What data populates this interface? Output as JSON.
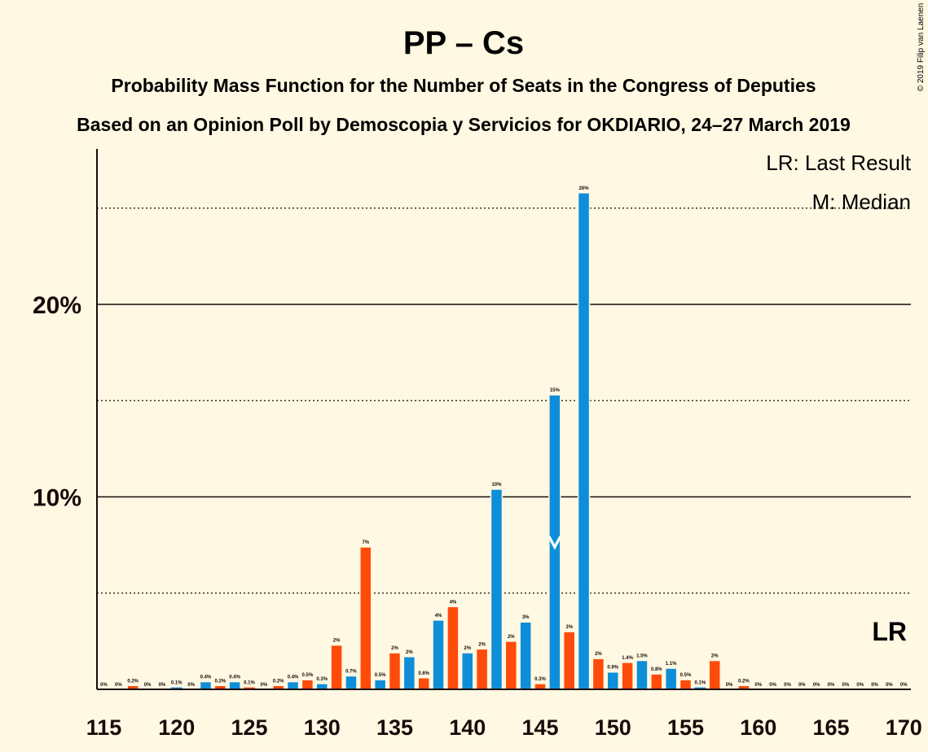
{
  "title": "PP – Cs",
  "subtitle1": "Probability Mass Function for the Number of Seats in the Congress of Deputies",
  "subtitle2": "Based on an Opinion Poll by Demoscopia y Servicios for OKDIARIO, 24–27 March 2019",
  "copyright": "© 2019 Filip van Laenen",
  "legend": {
    "lr": "LR: Last Result",
    "m": "M: Median"
  },
  "lr_label": "LR",
  "median_marker": "M",
  "colors": {
    "blue": "#0E8ED8",
    "orange": "#FF4B0A",
    "background": "#FFF8E2",
    "text": "#1a0a0a"
  },
  "chart_data": {
    "type": "bar",
    "x_range": [
      115,
      170
    ],
    "ylim": [
      0,
      28
    ],
    "yticks": [
      10,
      20
    ],
    "ytick_labels": [
      "10%",
      "20%"
    ],
    "dotted_gridlines": [
      5,
      15,
      25
    ],
    "solid_gridlines": [
      10,
      20
    ],
    "xticks": [
      115,
      120,
      125,
      130,
      135,
      140,
      145,
      150,
      155,
      160,
      165,
      170
    ],
    "median": 146,
    "bars": [
      {
        "x": 115,
        "value": 0,
        "label": "0%"
      },
      {
        "x": 116,
        "value": 0,
        "label": "0%"
      },
      {
        "x": 117,
        "value": 0.2,
        "label": "0.2%"
      },
      {
        "x": 118,
        "value": 0,
        "label": "0%"
      },
      {
        "x": 119,
        "value": 0,
        "label": "0%"
      },
      {
        "x": 120,
        "value": 0.1,
        "label": "0.1%"
      },
      {
        "x": 121,
        "value": 0,
        "label": "0%"
      },
      {
        "x": 122,
        "value": 0.4,
        "label": "0.4%"
      },
      {
        "x": 123,
        "value": 0.2,
        "label": "0.2%"
      },
      {
        "x": 124,
        "value": 0.4,
        "label": "0.4%"
      },
      {
        "x": 125,
        "value": 0.1,
        "label": "0.1%"
      },
      {
        "x": 126,
        "value": 0,
        "label": "0%"
      },
      {
        "x": 127,
        "value": 0.2,
        "label": "0.2%"
      },
      {
        "x": 128,
        "value": 0.4,
        "label": "0.4%"
      },
      {
        "x": 129,
        "value": 0.5,
        "label": "0.5%"
      },
      {
        "x": 130,
        "value": 0.3,
        "label": "0.3%"
      },
      {
        "x": 131,
        "value": 2.3,
        "label": "2%"
      },
      {
        "x": 132,
        "value": 0.7,
        "label": "0.7%"
      },
      {
        "x": 133,
        "value": 7.4,
        "label": "7%"
      },
      {
        "x": 134,
        "value": 0.5,
        "label": "0.5%"
      },
      {
        "x": 135,
        "value": 1.9,
        "label": "2%"
      },
      {
        "x": 136,
        "value": 1.7,
        "label": "2%"
      },
      {
        "x": 137,
        "value": 0.6,
        "label": "0.6%"
      },
      {
        "x": 138,
        "value": 3.6,
        "label": "4%"
      },
      {
        "x": 139,
        "value": 4.3,
        "label": "4%"
      },
      {
        "x": 140,
        "value": 1.9,
        "label": "2%"
      },
      {
        "x": 141,
        "value": 2.1,
        "label": "2%"
      },
      {
        "x": 142,
        "value": 10.4,
        "label": "10%"
      },
      {
        "x": 143,
        "value": 2.5,
        "label": "2%"
      },
      {
        "x": 144,
        "value": 3.5,
        "label": "3%"
      },
      {
        "x": 145,
        "value": 0.3,
        "label": "0.3%"
      },
      {
        "x": 146,
        "value": 15.3,
        "label": "15%"
      },
      {
        "x": 147,
        "value": 3.0,
        "label": "3%"
      },
      {
        "x": 148,
        "value": 25.8,
        "label": "26%"
      },
      {
        "x": 149,
        "value": 1.6,
        "label": "2%"
      },
      {
        "x": 150,
        "value": 0.9,
        "label": "0.9%"
      },
      {
        "x": 151,
        "value": 1.4,
        "label": "1.4%"
      },
      {
        "x": 152,
        "value": 1.5,
        "label": "1.5%"
      },
      {
        "x": 153,
        "value": 0.8,
        "label": "0.8%"
      },
      {
        "x": 154,
        "value": 1.1,
        "label": "1.1%"
      },
      {
        "x": 155,
        "value": 0.5,
        "label": "0.5%"
      },
      {
        "x": 156,
        "value": 0.1,
        "label": "0.1%"
      },
      {
        "x": 157,
        "value": 1.5,
        "label": "2%"
      },
      {
        "x": 158,
        "value": 0,
        "label": "0%"
      },
      {
        "x": 159,
        "value": 0.2,
        "label": "0.2%"
      },
      {
        "x": 160,
        "value": 0,
        "label": "0%"
      },
      {
        "x": 161,
        "value": 0,
        "label": "0%"
      },
      {
        "x": 162,
        "value": 0,
        "label": "0%"
      },
      {
        "x": 163,
        "value": 0,
        "label": "0%"
      },
      {
        "x": 164,
        "value": 0,
        "label": "0%"
      },
      {
        "x": 165,
        "value": 0,
        "label": "0%"
      },
      {
        "x": 166,
        "value": 0,
        "label": "0%"
      },
      {
        "x": 167,
        "value": 0,
        "label": "0%"
      },
      {
        "x": 168,
        "value": 0,
        "label": "0%"
      },
      {
        "x": 169,
        "value": 0,
        "label": "0%"
      },
      {
        "x": 170,
        "value": 0,
        "label": "0%"
      }
    ]
  }
}
